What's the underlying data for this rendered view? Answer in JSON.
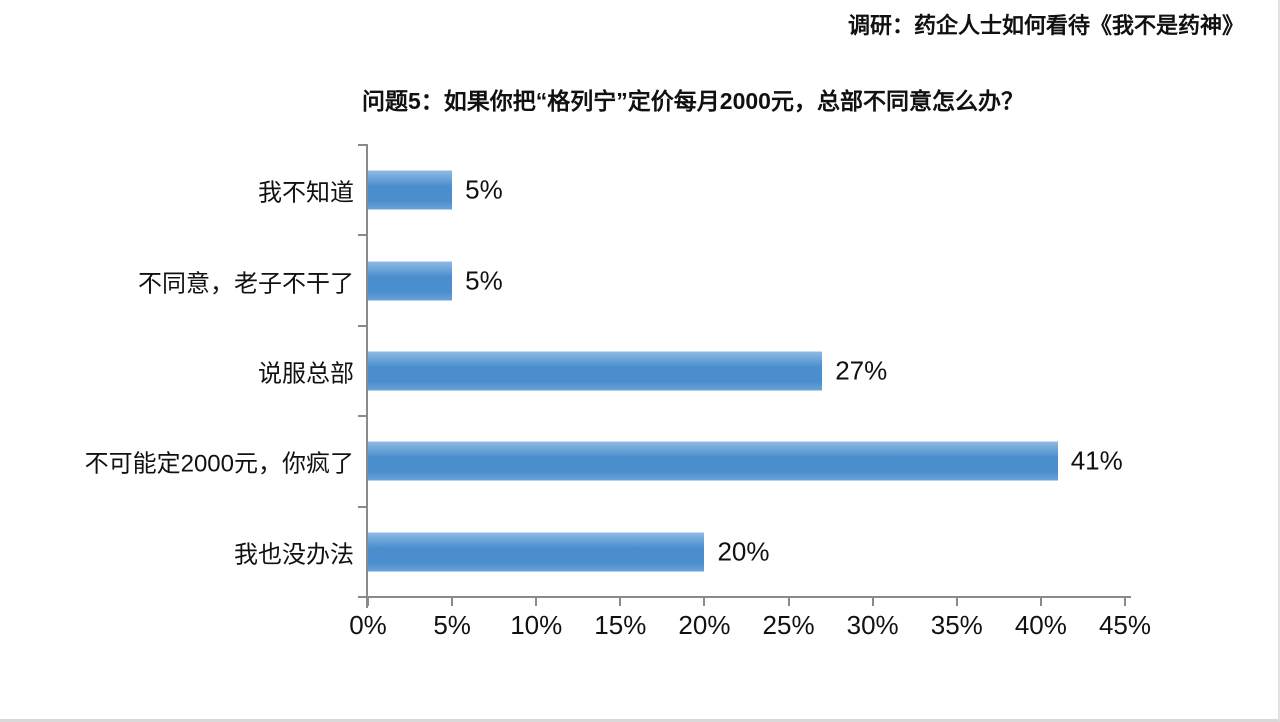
{
  "header": {
    "note": "调研：药企人士如何看待《我不是药神》"
  },
  "chart_data": {
    "type": "bar",
    "orientation": "horizontal",
    "title": "问题5：如果你把“格列宁”定价每月2000元，总部不同意怎么办？",
    "categories": [
      "我不知道",
      "不同意，老子不干了",
      "说服总部",
      "不可能定2000元，你疯了",
      "我也没办法"
    ],
    "values": [
      5,
      5,
      27,
      41,
      20
    ],
    "value_labels": [
      "5%",
      "5%",
      "27%",
      "41%",
      "20%"
    ],
    "x_ticks": [
      "0%",
      "5%",
      "10%",
      "15%",
      "20%",
      "25%",
      "30%",
      "35%",
      "40%",
      "45%"
    ],
    "xlim": [
      0,
      45
    ],
    "xlabel": "",
    "ylabel": "",
    "grid": false,
    "legend": "none",
    "bar_color": "#5494d2",
    "bar_gradient_top": "#8ebae5",
    "bar_gradient_mid": "#4b8ecd",
    "bar_gradient_bottom": "#6ba3d8",
    "axis_color": "#8a8a8a",
    "text_color": "#111111"
  }
}
